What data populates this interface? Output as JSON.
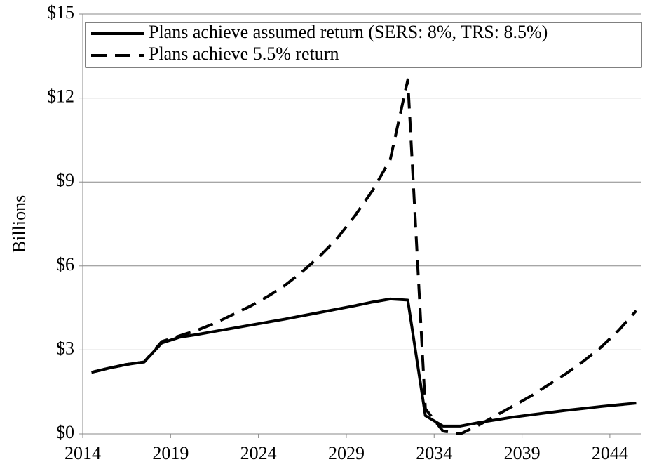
{
  "chart_data": {
    "type": "line",
    "ylabel": "Billions",
    "x": [
      2014.5,
      2015.5,
      2016.5,
      2017.5,
      2018.5,
      2019.5,
      2020.5,
      2021.5,
      2022.5,
      2023.5,
      2024.5,
      2025.5,
      2026.5,
      2027.5,
      2028.5,
      2029.5,
      2030.5,
      2031.5,
      2032.5,
      2033.5,
      2034.5,
      2035.5,
      2036.5,
      2037.5,
      2038.5,
      2039.5,
      2040.5,
      2041.5,
      2042.5,
      2043.5,
      2044.5,
      2045.5
    ],
    "series": [
      {
        "name": "Plans achieve assumed return (SERS: 8%, TRS: 8.5%)",
        "color": "#000000",
        "dash": false,
        "values": [
          2.2,
          2.35,
          2.48,
          2.57,
          3.25,
          3.45,
          3.55,
          3.66,
          3.77,
          3.88,
          3.99,
          4.1,
          4.22,
          4.34,
          4.46,
          4.58,
          4.71,
          4.82,
          4.78,
          0.65,
          0.28,
          0.28,
          0.4,
          0.5,
          0.6,
          0.68,
          0.76,
          0.84,
          0.91,
          0.98,
          1.04,
          1.1
        ]
      },
      {
        "name": "Plans achieve 5.5% return",
        "color": "#000000",
        "dash": true,
        "values": [
          2.2,
          2.35,
          2.48,
          2.57,
          3.3,
          3.5,
          3.7,
          3.95,
          4.25,
          4.55,
          4.9,
          5.3,
          5.8,
          6.35,
          7.0,
          7.8,
          8.7,
          9.8,
          12.65,
          0.9,
          0.1,
          0.0,
          0.3,
          0.65,
          1.0,
          1.35,
          1.75,
          2.15,
          2.6,
          3.1,
          3.7,
          4.4
        ]
      }
    ],
    "xlim": [
      2014,
      2045.8
    ],
    "xticks": [
      2014,
      2019,
      2024,
      2029,
      2034,
      2039,
      2044
    ],
    "ylim": [
      0,
      15
    ],
    "yticks": [
      {
        "value": 0,
        "label": "$0"
      },
      {
        "value": 3,
        "label": "$3"
      },
      {
        "value": 6,
        "label": "$6"
      },
      {
        "value": 9,
        "label": "$9"
      },
      {
        "value": 12,
        "label": "$12"
      },
      {
        "value": 15,
        "label": "$15"
      }
    ],
    "grid": true,
    "legend": "top-left"
  }
}
